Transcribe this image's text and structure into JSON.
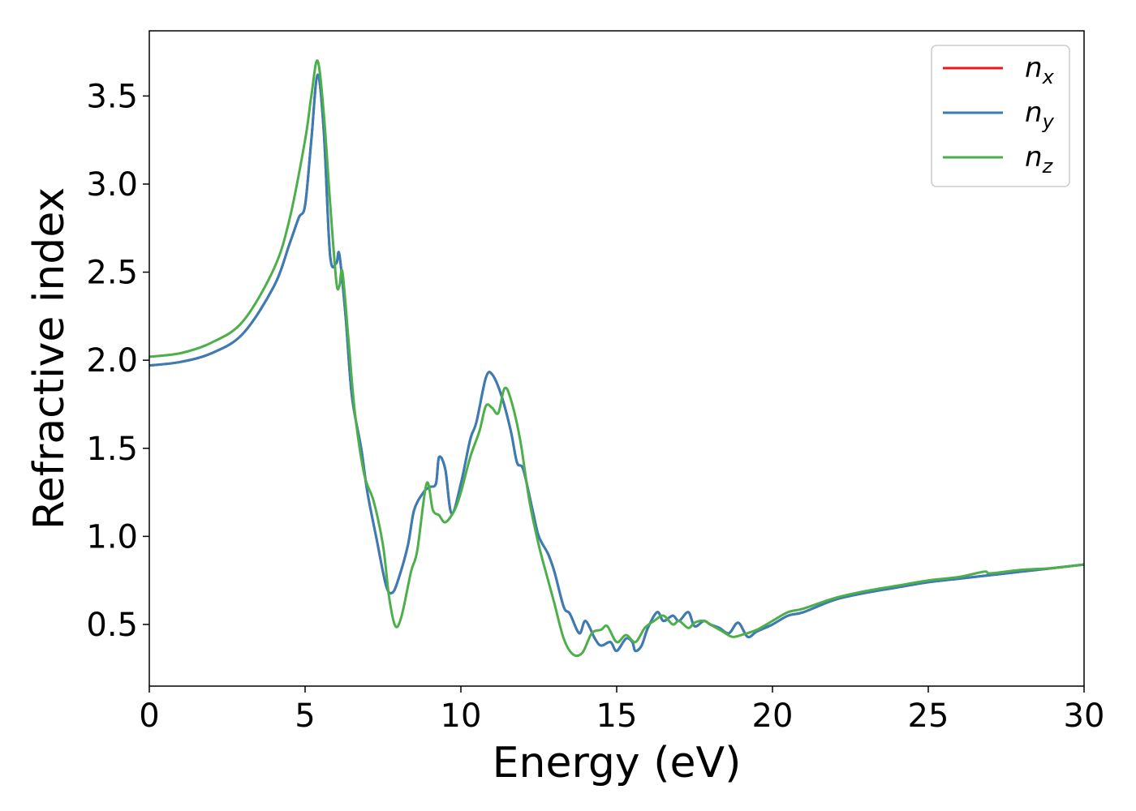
{
  "chart_data": {
    "type": "line",
    "xlabel": "Energy (eV)",
    "ylabel": "Refractive index",
    "xlim": [
      0,
      30
    ],
    "ylim": [
      0.15,
      3.87
    ],
    "xticks": [
      0,
      5,
      10,
      15,
      20,
      25,
      30
    ],
    "xtick_labels": [
      "0",
      "5",
      "10",
      "15",
      "20",
      "25",
      "30"
    ],
    "yticks": [
      0.5,
      1.0,
      1.5,
      2.0,
      2.5,
      3.0,
      3.5
    ],
    "ytick_labels": [
      "0.5",
      "1.0",
      "1.5",
      "2.0",
      "2.5",
      "3.0",
      "3.5"
    ],
    "grid": false,
    "legend_position": "top-right",
    "series": [
      {
        "name": "n",
        "subscript": "x",
        "color": "#e41a1c",
        "points": [
          [
            0,
            1.97
          ],
          [
            1,
            1.99
          ],
          [
            2,
            2.04
          ],
          [
            3,
            2.15
          ],
          [
            4,
            2.42
          ],
          [
            4.5,
            2.66
          ],
          [
            4.8,
            2.81
          ],
          [
            5.0,
            2.88
          ],
          [
            5.2,
            3.25
          ],
          [
            5.4,
            3.62
          ],
          [
            5.6,
            3.3
          ],
          [
            5.8,
            2.6
          ],
          [
            6.0,
            2.55
          ],
          [
            6.1,
            2.6
          ],
          [
            6.3,
            2.25
          ],
          [
            6.5,
            1.8
          ],
          [
            6.8,
            1.5
          ],
          [
            7.0,
            1.25
          ],
          [
            7.3,
            0.98
          ],
          [
            7.6,
            0.72
          ],
          [
            7.8,
            0.68
          ],
          [
            8.0,
            0.76
          ],
          [
            8.3,
            0.95
          ],
          [
            8.5,
            1.15
          ],
          [
            8.8,
            1.25
          ],
          [
            9.0,
            1.28
          ],
          [
            9.2,
            1.3
          ],
          [
            9.3,
            1.45
          ],
          [
            9.5,
            1.38
          ],
          [
            9.7,
            1.13
          ],
          [
            10.0,
            1.3
          ],
          [
            10.3,
            1.55
          ],
          [
            10.5,
            1.65
          ],
          [
            10.8,
            1.9
          ],
          [
            11.0,
            1.92
          ],
          [
            11.3,
            1.8
          ],
          [
            11.6,
            1.6
          ],
          [
            11.8,
            1.42
          ],
          [
            12.0,
            1.38
          ],
          [
            12.3,
            1.15
          ],
          [
            12.5,
            1.0
          ],
          [
            12.8,
            0.9
          ],
          [
            13.0,
            0.8
          ],
          [
            13.3,
            0.6
          ],
          [
            13.5,
            0.56
          ],
          [
            13.8,
            0.45
          ],
          [
            14.0,
            0.52
          ],
          [
            14.3,
            0.42
          ],
          [
            14.5,
            0.38
          ],
          [
            14.8,
            0.4
          ],
          [
            15.0,
            0.35
          ],
          [
            15.3,
            0.42
          ],
          [
            15.5,
            0.4
          ],
          [
            15.6,
            0.35
          ],
          [
            15.8,
            0.38
          ],
          [
            16.0,
            0.48
          ],
          [
            16.3,
            0.57
          ],
          [
            16.5,
            0.52
          ],
          [
            16.8,
            0.55
          ],
          [
            17.0,
            0.52
          ],
          [
            17.3,
            0.57
          ],
          [
            17.5,
            0.49
          ],
          [
            17.8,
            0.52
          ],
          [
            18.0,
            0.5
          ],
          [
            18.3,
            0.48
          ],
          [
            18.6,
            0.45
          ],
          [
            18.9,
            0.51
          ],
          [
            19.2,
            0.43
          ],
          [
            19.5,
            0.46
          ],
          [
            20.0,
            0.5
          ],
          [
            20.5,
            0.55
          ],
          [
            21.0,
            0.57
          ],
          [
            22.0,
            0.64
          ],
          [
            23.0,
            0.68
          ],
          [
            24.0,
            0.71
          ],
          [
            25.0,
            0.74
          ],
          [
            26.0,
            0.76
          ],
          [
            27.0,
            0.78
          ],
          [
            28.0,
            0.8
          ],
          [
            29.0,
            0.82
          ],
          [
            30.0,
            0.84
          ]
        ]
      },
      {
        "name": "n",
        "subscript": "y",
        "color": "#377eb8",
        "points": [
          [
            0,
            1.97
          ],
          [
            1,
            1.99
          ],
          [
            2,
            2.04
          ],
          [
            3,
            2.15
          ],
          [
            4,
            2.42
          ],
          [
            4.5,
            2.66
          ],
          [
            4.8,
            2.81
          ],
          [
            5.0,
            2.88
          ],
          [
            5.2,
            3.25
          ],
          [
            5.4,
            3.62
          ],
          [
            5.6,
            3.3
          ],
          [
            5.8,
            2.6
          ],
          [
            6.0,
            2.55
          ],
          [
            6.1,
            2.6
          ],
          [
            6.3,
            2.25
          ],
          [
            6.5,
            1.8
          ],
          [
            6.8,
            1.5
          ],
          [
            7.0,
            1.25
          ],
          [
            7.3,
            0.98
          ],
          [
            7.6,
            0.72
          ],
          [
            7.8,
            0.68
          ],
          [
            8.0,
            0.76
          ],
          [
            8.3,
            0.95
          ],
          [
            8.5,
            1.15
          ],
          [
            8.8,
            1.25
          ],
          [
            9.0,
            1.28
          ],
          [
            9.2,
            1.3
          ],
          [
            9.3,
            1.45
          ],
          [
            9.5,
            1.38
          ],
          [
            9.7,
            1.13
          ],
          [
            10.0,
            1.3
          ],
          [
            10.3,
            1.55
          ],
          [
            10.5,
            1.65
          ],
          [
            10.8,
            1.9
          ],
          [
            11.0,
            1.92
          ],
          [
            11.3,
            1.8
          ],
          [
            11.6,
            1.6
          ],
          [
            11.8,
            1.42
          ],
          [
            12.0,
            1.38
          ],
          [
            12.3,
            1.15
          ],
          [
            12.5,
            1.0
          ],
          [
            12.8,
            0.9
          ],
          [
            13.0,
            0.8
          ],
          [
            13.3,
            0.6
          ],
          [
            13.5,
            0.56
          ],
          [
            13.8,
            0.45
          ],
          [
            14.0,
            0.52
          ],
          [
            14.3,
            0.42
          ],
          [
            14.5,
            0.38
          ],
          [
            14.8,
            0.4
          ],
          [
            15.0,
            0.35
          ],
          [
            15.3,
            0.42
          ],
          [
            15.5,
            0.4
          ],
          [
            15.6,
            0.35
          ],
          [
            15.8,
            0.38
          ],
          [
            16.0,
            0.48
          ],
          [
            16.3,
            0.57
          ],
          [
            16.5,
            0.52
          ],
          [
            16.8,
            0.55
          ],
          [
            17.0,
            0.52
          ],
          [
            17.3,
            0.57
          ],
          [
            17.5,
            0.49
          ],
          [
            17.8,
            0.52
          ],
          [
            18.0,
            0.5
          ],
          [
            18.3,
            0.48
          ],
          [
            18.6,
            0.45
          ],
          [
            18.9,
            0.51
          ],
          [
            19.2,
            0.43
          ],
          [
            19.5,
            0.46
          ],
          [
            20.0,
            0.5
          ],
          [
            20.5,
            0.55
          ],
          [
            21.0,
            0.57
          ],
          [
            22.0,
            0.64
          ],
          [
            23.0,
            0.68
          ],
          [
            24.0,
            0.71
          ],
          [
            25.0,
            0.74
          ],
          [
            26.0,
            0.76
          ],
          [
            27.0,
            0.78
          ],
          [
            28.0,
            0.8
          ],
          [
            29.0,
            0.82
          ],
          [
            30.0,
            0.84
          ]
        ]
      },
      {
        "name": "n",
        "subscript": "z",
        "color": "#4daf4a",
        "points": [
          [
            0,
            2.02
          ],
          [
            1,
            2.04
          ],
          [
            2,
            2.1
          ],
          [
            3,
            2.22
          ],
          [
            4,
            2.52
          ],
          [
            4.5,
            2.8
          ],
          [
            5.0,
            3.25
          ],
          [
            5.2,
            3.5
          ],
          [
            5.4,
            3.7
          ],
          [
            5.6,
            3.4
          ],
          [
            5.8,
            2.9
          ],
          [
            6.0,
            2.45
          ],
          [
            6.1,
            2.42
          ],
          [
            6.2,
            2.5
          ],
          [
            6.4,
            2.1
          ],
          [
            6.6,
            1.7
          ],
          [
            6.9,
            1.35
          ],
          [
            7.2,
            1.2
          ],
          [
            7.5,
            0.95
          ],
          [
            7.7,
            0.65
          ],
          [
            7.9,
            0.49
          ],
          [
            8.1,
            0.55
          ],
          [
            8.4,
            0.8
          ],
          [
            8.6,
            0.92
          ],
          [
            8.9,
            1.3
          ],
          [
            9.1,
            1.15
          ],
          [
            9.3,
            1.12
          ],
          [
            9.5,
            1.08
          ],
          [
            9.8,
            1.15
          ],
          [
            10.0,
            1.25
          ],
          [
            10.3,
            1.45
          ],
          [
            10.6,
            1.6
          ],
          [
            10.8,
            1.74
          ],
          [
            11.0,
            1.73
          ],
          [
            11.2,
            1.7
          ],
          [
            11.4,
            1.84
          ],
          [
            11.6,
            1.78
          ],
          [
            11.9,
            1.55
          ],
          [
            12.2,
            1.2
          ],
          [
            12.5,
            0.95
          ],
          [
            12.8,
            0.75
          ],
          [
            13.0,
            0.62
          ],
          [
            13.3,
            0.42
          ],
          [
            13.6,
            0.33
          ],
          [
            13.9,
            0.34
          ],
          [
            14.2,
            0.45
          ],
          [
            14.5,
            0.47
          ],
          [
            14.7,
            0.49
          ],
          [
            15.0,
            0.4
          ],
          [
            15.3,
            0.44
          ],
          [
            15.6,
            0.4
          ],
          [
            15.9,
            0.48
          ],
          [
            16.2,
            0.52
          ],
          [
            16.5,
            0.55
          ],
          [
            16.8,
            0.5
          ],
          [
            17.0,
            0.52
          ],
          [
            17.3,
            0.48
          ],
          [
            17.5,
            0.51
          ],
          [
            17.8,
            0.52
          ],
          [
            18.1,
            0.49
          ],
          [
            18.4,
            0.46
          ],
          [
            18.7,
            0.43
          ],
          [
            19.0,
            0.44
          ],
          [
            19.5,
            0.47
          ],
          [
            20.0,
            0.52
          ],
          [
            20.5,
            0.57
          ],
          [
            21.0,
            0.59
          ],
          [
            22.0,
            0.65
          ],
          [
            23.0,
            0.69
          ],
          [
            24.0,
            0.72
          ],
          [
            25.0,
            0.75
          ],
          [
            26.0,
            0.77
          ],
          [
            26.8,
            0.8
          ],
          [
            27.0,
            0.79
          ],
          [
            28.0,
            0.81
          ],
          [
            29.0,
            0.82
          ],
          [
            30.0,
            0.84
          ]
        ]
      }
    ]
  }
}
